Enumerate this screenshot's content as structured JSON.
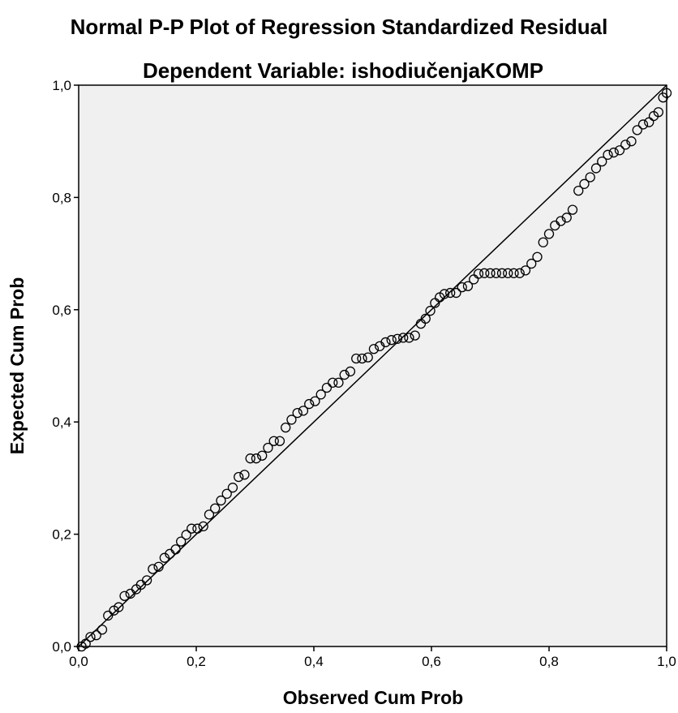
{
  "chart_data": {
    "type": "scatter",
    "title": "Normal P-P Plot of Regression Standardized Residual",
    "subtitle": "Dependent Variable: ishodiučenjaKOMP",
    "xlabel": "Observed Cum Prob",
    "ylabel": "Expected Cum Prob",
    "xlim": [
      0,
      1
    ],
    "ylim": [
      0,
      1
    ],
    "xticks": [
      "0,0",
      "0,2",
      "0,4",
      "0,6",
      "0,8",
      "1,0"
    ],
    "yticks": [
      "0,0",
      "0,2",
      "0,4",
      "0,6",
      "0,8",
      "1,0"
    ],
    "grid": false,
    "plot_background": "#f0f0f0",
    "marker": "open-circle",
    "reference_line": {
      "from": [
        0,
        0
      ],
      "to": [
        1,
        1
      ]
    },
    "points": [
      [
        0.005,
        0.0
      ],
      [
        0.012,
        0.005
      ],
      [
        0.02,
        0.017
      ],
      [
        0.03,
        0.02
      ],
      [
        0.04,
        0.03
      ],
      [
        0.05,
        0.055
      ],
      [
        0.06,
        0.064
      ],
      [
        0.068,
        0.07
      ],
      [
        0.078,
        0.09
      ],
      [
        0.088,
        0.094
      ],
      [
        0.098,
        0.102
      ],
      [
        0.106,
        0.11
      ],
      [
        0.116,
        0.118
      ],
      [
        0.126,
        0.138
      ],
      [
        0.136,
        0.142
      ],
      [
        0.146,
        0.158
      ],
      [
        0.155,
        0.165
      ],
      [
        0.165,
        0.173
      ],
      [
        0.174,
        0.187
      ],
      [
        0.183,
        0.199
      ],
      [
        0.192,
        0.21
      ],
      [
        0.202,
        0.21
      ],
      [
        0.212,
        0.214
      ],
      [
        0.222,
        0.235
      ],
      [
        0.232,
        0.246
      ],
      [
        0.242,
        0.26
      ],
      [
        0.252,
        0.272
      ],
      [
        0.262,
        0.283
      ],
      [
        0.272,
        0.302
      ],
      [
        0.282,
        0.306
      ],
      [
        0.292,
        0.335
      ],
      [
        0.302,
        0.335
      ],
      [
        0.312,
        0.34
      ],
      [
        0.322,
        0.354
      ],
      [
        0.332,
        0.366
      ],
      [
        0.342,
        0.366
      ],
      [
        0.352,
        0.39
      ],
      [
        0.362,
        0.404
      ],
      [
        0.372,
        0.416
      ],
      [
        0.382,
        0.42
      ],
      [
        0.392,
        0.432
      ],
      [
        0.402,
        0.437
      ],
      [
        0.412,
        0.449
      ],
      [
        0.422,
        0.461
      ],
      [
        0.432,
        0.47
      ],
      [
        0.442,
        0.47
      ],
      [
        0.452,
        0.484
      ],
      [
        0.462,
        0.49
      ],
      [
        0.472,
        0.513
      ],
      [
        0.482,
        0.513
      ],
      [
        0.492,
        0.515
      ],
      [
        0.502,
        0.53
      ],
      [
        0.512,
        0.535
      ],
      [
        0.522,
        0.542
      ],
      [
        0.532,
        0.546
      ],
      [
        0.542,
        0.548
      ],
      [
        0.552,
        0.55
      ],
      [
        0.562,
        0.55
      ],
      [
        0.572,
        0.554
      ],
      [
        0.582,
        0.575
      ],
      [
        0.59,
        0.584
      ],
      [
        0.598,
        0.598
      ],
      [
        0.606,
        0.612
      ],
      [
        0.614,
        0.622
      ],
      [
        0.622,
        0.628
      ],
      [
        0.632,
        0.63
      ],
      [
        0.642,
        0.63
      ],
      [
        0.652,
        0.64
      ],
      [
        0.662,
        0.642
      ],
      [
        0.672,
        0.654
      ],
      [
        0.68,
        0.664
      ],
      [
        0.69,
        0.665
      ],
      [
        0.7,
        0.665
      ],
      [
        0.71,
        0.665
      ],
      [
        0.72,
        0.665
      ],
      [
        0.73,
        0.665
      ],
      [
        0.74,
        0.665
      ],
      [
        0.75,
        0.665
      ],
      [
        0.76,
        0.67
      ],
      [
        0.77,
        0.682
      ],
      [
        0.78,
        0.694
      ],
      [
        0.79,
        0.72
      ],
      [
        0.8,
        0.735
      ],
      [
        0.81,
        0.75
      ],
      [
        0.82,
        0.758
      ],
      [
        0.83,
        0.764
      ],
      [
        0.84,
        0.778
      ],
      [
        0.85,
        0.812
      ],
      [
        0.86,
        0.824
      ],
      [
        0.87,
        0.836
      ],
      [
        0.88,
        0.852
      ],
      [
        0.89,
        0.864
      ],
      [
        0.9,
        0.876
      ],
      [
        0.91,
        0.88
      ],
      [
        0.92,
        0.884
      ],
      [
        0.93,
        0.894
      ],
      [
        0.94,
        0.9
      ],
      [
        0.95,
        0.92
      ],
      [
        0.96,
        0.93
      ],
      [
        0.97,
        0.934
      ],
      [
        0.978,
        0.945
      ],
      [
        0.986,
        0.952
      ],
      [
        0.994,
        0.978
      ],
      [
        1.0,
        0.986
      ]
    ]
  }
}
